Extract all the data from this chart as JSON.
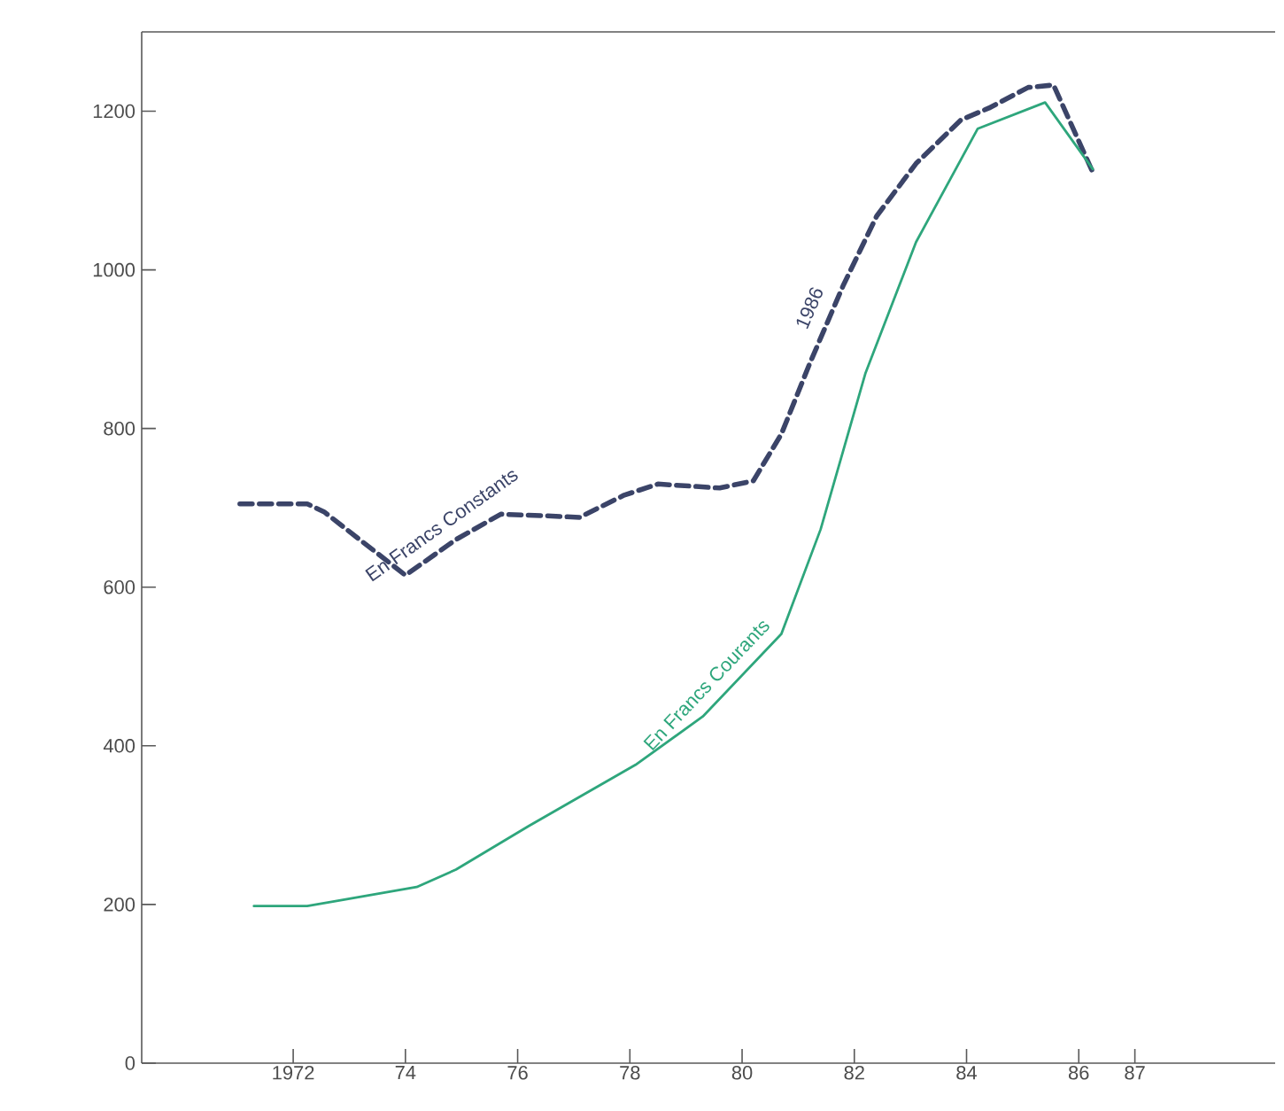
{
  "chart_data": {
    "type": "line",
    "xlim": [
      1969.3,
      1989.5
    ],
    "ylim": [
      0,
      1300
    ],
    "xticks": [
      {
        "value": 1972,
        "label": "1972"
      },
      {
        "value": 1974,
        "label": "74"
      },
      {
        "value": 1976,
        "label": "76"
      },
      {
        "value": 1978,
        "label": "78"
      },
      {
        "value": 1980,
        "label": "80"
      },
      {
        "value": 1982,
        "label": "82"
      },
      {
        "value": 1984,
        "label": "84"
      },
      {
        "value": 1986,
        "label": "86"
      },
      {
        "value": 1987,
        "label": "87"
      }
    ],
    "yticks": [
      0,
      200,
      400,
      600,
      800,
      1000,
      1200
    ],
    "series": [
      {
        "name": "En Francs Constants",
        "color": "#3b4468",
        "line_style": "dashed",
        "x": [
          1971.05,
          1972.25,
          1972.55,
          1974,
          1974.9,
          1975.7,
          1976.5,
          1977.1,
          1977.9,
          1978.5,
          1979.6,
          1980.2,
          1980.7,
          1981.2,
          1981.8,
          1982.4,
          1983.1,
          1983.9,
          1984.4,
          1985.1,
          1985.55,
          1986.25
        ],
        "values": [
          705,
          705,
          695,
          615,
          660,
          692,
          690,
          688,
          716,
          730,
          725,
          734,
          793,
          881,
          980,
          1068,
          1134,
          1189,
          1204,
          1230,
          1233,
          1123
        ]
      },
      {
        "name": "En Francs Courants",
        "color": "#2ea67c",
        "line_style": "solid",
        "x": [
          1971.3,
          1972.25,
          1974.2,
          1974.9,
          1976.2,
          1978.1,
          1979.3,
          1980.7,
          1981.4,
          1982.2,
          1983.1,
          1984.2,
          1985.4,
          1986.25
        ],
        "values": [
          198,
          198,
          222,
          244,
          299,
          376,
          437,
          541,
          673,
          870,
          1035,
          1178,
          1211,
          1127
        ]
      }
    ],
    "annotations": [
      "1986"
    ]
  }
}
